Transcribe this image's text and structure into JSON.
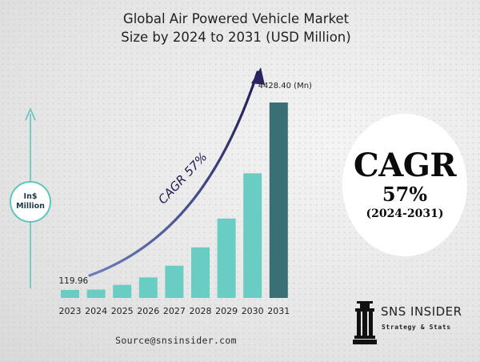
{
  "title_line1": "Global Air Powered Vehicle Market",
  "title_line2": "Size by 2024 to 2031 (USD Million)",
  "unit_badge": {
    "line1": "In$",
    "line2": "Million"
  },
  "cagr": {
    "label": "CAGR",
    "value": "57%",
    "period": "(2024-2031)"
  },
  "source": "Source@snsinsider.com",
  "logo": {
    "name": "SNS INSIDER",
    "tagline": "Strategy & Stats"
  },
  "colors": {
    "bar": "#69cdc4",
    "bar_highlight": "#3a6f76",
    "trend_arrow": "#2a2460",
    "axis_arrow": "#5fc6bb"
  },
  "chart_data": {
    "type": "bar",
    "title": "Global Air Powered Vehicle Market Size by 2024 to 2031 (USD Million)",
    "categories": [
      "2023",
      "2024",
      "2025",
      "2026",
      "2027",
      "2028",
      "2029",
      "2030",
      "2031"
    ],
    "values": [
      119.96,
      188,
      296,
      465,
      730,
      1146,
      1799,
      2825,
      4428.4
    ],
    "data_labels": {
      "first": "119.96",
      "last": "4428.40 (Mn)"
    },
    "trend_label": "CAGR 57%",
    "ylim": [
      0,
      4428.4
    ],
    "grid": false,
    "legend": "none"
  }
}
